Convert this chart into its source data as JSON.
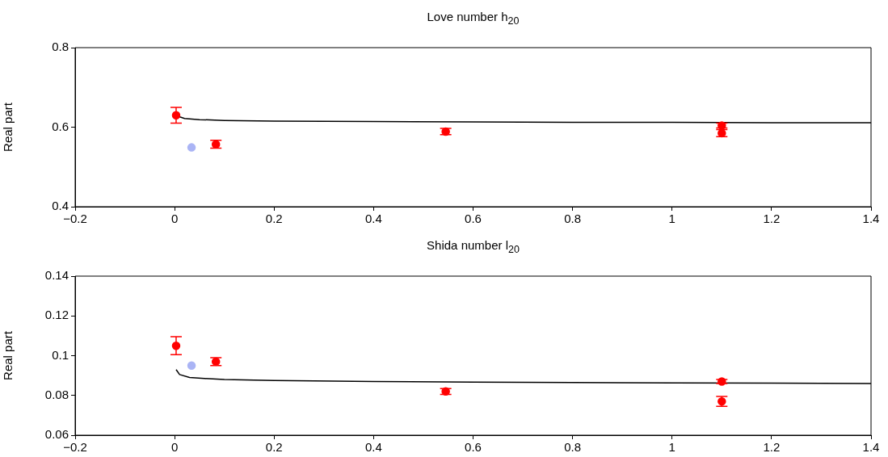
{
  "chart_data": [
    {
      "type": "scatter",
      "title": "Love number h$_{20}$",
      "ylabel": "Real part",
      "xlim": [
        -0.2,
        1.4
      ],
      "xticks": [
        {
          "value": -0.2,
          "label": "−0.2"
        },
        0,
        0.2,
        0.4,
        0.6,
        0.8,
        1,
        1.2,
        1.4
      ],
      "ylim": [
        0.4,
        0.8
      ],
      "yticks": [
        0.4,
        0.6,
        0.8
      ],
      "grid": false,
      "legend": false,
      "marker": "circle",
      "series": [
        {
          "color": "#ff0000",
          "x": [
            0.003,
            0.083,
            0.545,
            1.1,
            1.1
          ],
          "values": [
            0.63,
            0.557,
            0.589,
            0.604,
            0.585
          ],
          "errors": [
            0.02,
            0.01,
            0.008,
            0.006,
            0.009
          ]
        },
        {
          "color": "#aab4f5",
          "x": [
            0.034
          ],
          "values": [
            0.549
          ]
        },
        {
          "type": "line",
          "color": "#000000",
          "marker": "none",
          "x": [
            0.008,
            0.02,
            0.05,
            0.1,
            0.2,
            0.4,
            0.6,
            0.8,
            1.0,
            1.2,
            1.4
          ],
          "values": [
            0.627,
            0.622,
            0.619,
            0.617,
            0.615,
            0.614,
            0.613,
            0.612,
            0.612,
            0.611,
            0.611
          ]
        }
      ]
    },
    {
      "type": "scatter",
      "title": "Shida number l$_{20}$",
      "ylabel": "Real part",
      "xlim": [
        -0.2,
        1.4
      ],
      "xticks": [
        {
          "value": -0.2,
          "label": "−0.2"
        },
        0,
        0.2,
        0.4,
        0.6,
        0.8,
        1,
        1.2,
        1.4
      ],
      "ylim": [
        0.06,
        0.14
      ],
      "yticks": [
        0.06,
        0.08,
        0.1,
        0.12,
        0.14
      ],
      "grid": false,
      "legend": false,
      "marker": "circle",
      "series": [
        {
          "color": "#ff0000",
          "x": [
            0.003,
            0.083,
            0.545,
            1.1,
            1.1
          ],
          "values": [
            0.105,
            0.097,
            0.082,
            0.087,
            0.077
          ],
          "errors": [
            0.0045,
            0.002,
            0.0015,
            0.001,
            0.0025
          ]
        },
        {
          "color": "#aab4f5",
          "x": [
            0.034
          ],
          "values": [
            0.095
          ]
        },
        {
          "type": "line",
          "color": "#000000",
          "marker": "none",
          "x": [
            0.003,
            0.01,
            0.03,
            0.06,
            0.1,
            0.2,
            0.4,
            0.6,
            0.8,
            1.0,
            1.2,
            1.4
          ],
          "values": [
            0.093,
            0.0905,
            0.089,
            0.0885,
            0.088,
            0.0875,
            0.087,
            0.0867,
            0.0865,
            0.0863,
            0.0862,
            0.086
          ]
        }
      ]
    }
  ]
}
